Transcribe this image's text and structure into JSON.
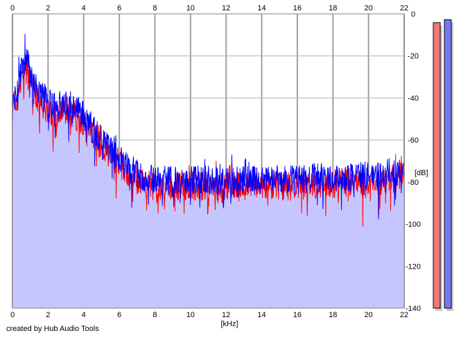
{
  "chart_data": {
    "type": "area",
    "xlabel": "[kHz]",
    "ylabel": "[dB]",
    "xlim": [
      0,
      22
    ],
    "ylim": [
      -140,
      0
    ],
    "x_ticks": [
      "0",
      "2",
      "4",
      "6",
      "8",
      "10",
      "12",
      "14",
      "16",
      "18",
      "20",
      "22"
    ],
    "y_ticks": [
      "0",
      "-20",
      "-40",
      "-60",
      "-80",
      "-100",
      "-120",
      "-140"
    ],
    "grid": true,
    "fill_color": "#c6c6ff",
    "series": [
      {
        "color": "#ff0000",
        "x": [
          0,
          0.25,
          0.5,
          0.75,
          1.0,
          1.5,
          2.0,
          2.5,
          3.0,
          3.5,
          4.0,
          4.5,
          5.0,
          5.5,
          6.0,
          6.5,
          7.0,
          7.5,
          8.0,
          9.0,
          10.0,
          11.0,
          12.0,
          13.0,
          14.0,
          15.0,
          16.0,
          17.0,
          18.0,
          19.0,
          20.0,
          21.0,
          22.0
        ],
        "y": [
          -45,
          -40,
          -30,
          -27,
          -32,
          -42,
          -45,
          -48,
          -45,
          -48,
          -52,
          -58,
          -63,
          -67,
          -71,
          -75,
          -79,
          -81,
          -82,
          -82,
          -82,
          -82,
          -82,
          -82,
          -82,
          -82,
          -82,
          -81,
          -81,
          -80,
          -80,
          -79,
          -78
        ]
      },
      {
        "color": "#0000ff",
        "x": [
          0,
          0.25,
          0.5,
          0.75,
          1.0,
          1.5,
          2.0,
          2.5,
          3.0,
          3.5,
          4.0,
          4.5,
          5.0,
          5.5,
          6.0,
          6.5,
          7.0,
          7.5,
          8.0,
          9.0,
          10.0,
          11.0,
          12.0,
          13.0,
          14.0,
          15.0,
          16.0,
          17.0,
          18.0,
          19.0,
          20.0,
          21.0,
          22.0
        ],
        "y": [
          -42,
          -36,
          -26,
          -22,
          -27,
          -38,
          -42,
          -45,
          -41,
          -44,
          -48,
          -55,
          -60,
          -65,
          -69,
          -73,
          -76,
          -78,
          -79,
          -79,
          -79,
          -79,
          -79,
          -79,
          -79,
          -79,
          -79,
          -78,
          -78,
          -78,
          -77,
          -76,
          -74
        ]
      }
    ],
    "footer": "created by Hub Audio Tools",
    "meters": [
      {
        "color": "#f07878",
        "level": 0.97
      },
      {
        "color": "#7878f0",
        "level": 0.98
      }
    ]
  }
}
